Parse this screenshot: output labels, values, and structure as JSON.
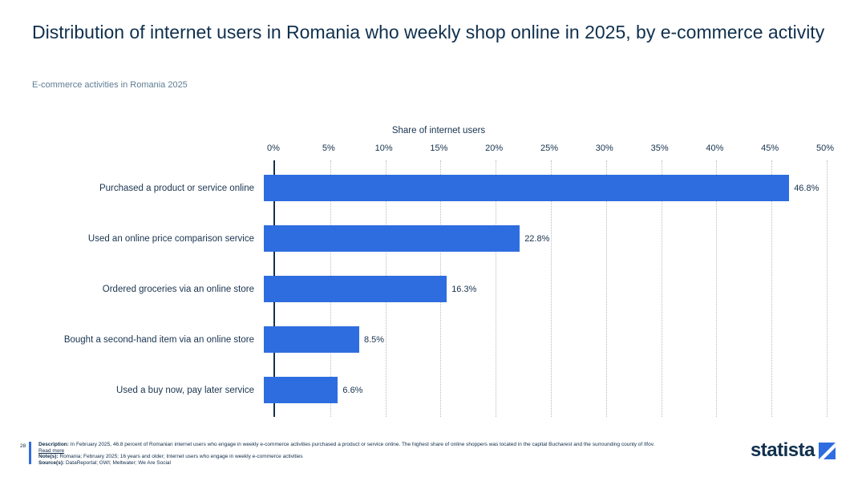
{
  "title": "Distribution of internet users in Romania who weekly shop online in 2025, by e-commerce activity",
  "subtitle": "E-commerce activities in Romania 2025",
  "chart_data": {
    "type": "bar",
    "orientation": "horizontal",
    "axis_title": "Share of internet users",
    "categories": [
      "Purchased a product or service online",
      "Used an online price comparison service",
      "Ordered groceries via an online store",
      "Bought a second-hand item via an online store",
      "Used a buy now, pay later service"
    ],
    "values": [
      46.8,
      22.8,
      16.3,
      8.5,
      6.6
    ],
    "value_labels": [
      "46.8%",
      "22.8%",
      "16.3%",
      "8.5%",
      "6.6%"
    ],
    "xlim": [
      0,
      50
    ],
    "ticks": [
      "0%",
      "5%",
      "10%",
      "15%",
      "20%",
      "25%",
      "30%",
      "35%",
      "40%",
      "45%",
      "50%"
    ],
    "bar_color": "#2e6de0",
    "grid": "dotted-vertical",
    "legend": "none"
  },
  "footer": {
    "page_number": "28",
    "description_label": "Description:",
    "description": "In February 2025, 46.8 percent of Romanian internet users who engage in weekly e-commerce activities purchased a product or service online. The highest share of online shoppers was located in the capital Bucharest and the surrounding county of Ilfov.",
    "read_more": "Read more",
    "notes_label": "Note(s):",
    "notes": "Romania; February 2025; 16 years and older; Internet users who engage in weekly e-commerce activities",
    "sources_label": "Source(s):",
    "sources": "DataReportal; GWI; Meltwater; We Are Social",
    "brand": "statista"
  },
  "colors": {
    "accent_blue": "#2e6de0",
    "title_navy": "#10304e",
    "subtitle_gray": "#5f7d93"
  }
}
